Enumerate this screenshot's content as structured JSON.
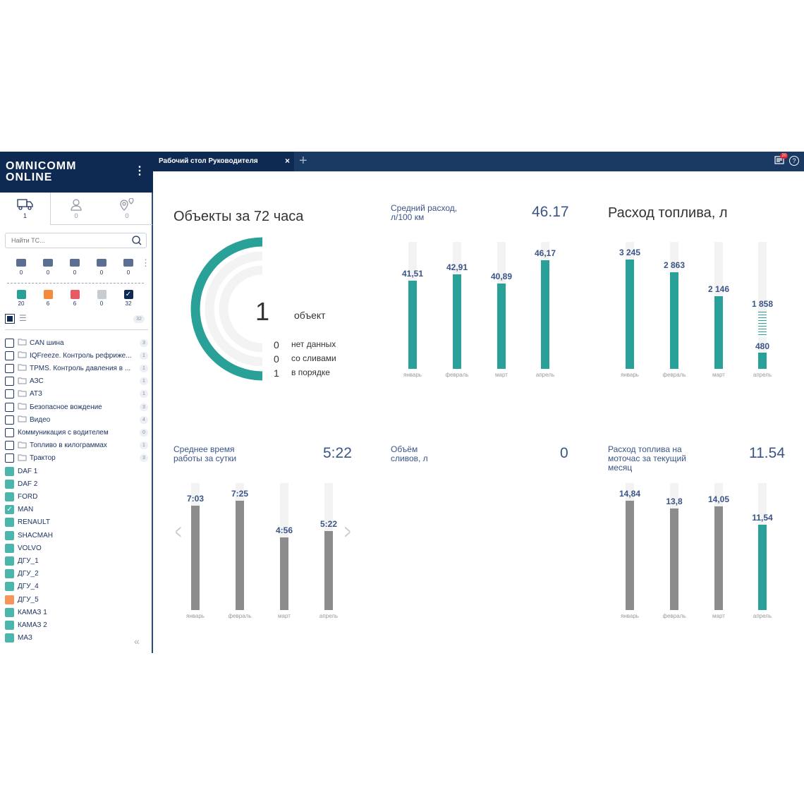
{
  "app": {
    "logo_line1": "OMNICOMM",
    "logo_line2": "ONLINE",
    "menu_icon": "vertical-dots"
  },
  "sidebar": {
    "tabs": [
      {
        "icon": "truck-icon",
        "count": "1"
      },
      {
        "icon": "person-icon",
        "count": "0"
      },
      {
        "icon": "geozone-icon",
        "count": "0"
      }
    ],
    "search_placeholder": "Найти ТС...",
    "filters": [
      {
        "icon": "service-icon",
        "count": "0"
      },
      {
        "icon": "crash-icon",
        "count": "0"
      },
      {
        "icon": "truck-loaded-icon",
        "count": "0"
      },
      {
        "icon": "bed-icon",
        "count": "0"
      },
      {
        "icon": "fuel-station-icon",
        "count": "0"
      }
    ],
    "statuses": [
      {
        "color": "#2aa198",
        "count": "20"
      },
      {
        "color": "#f38a3c",
        "count": "6"
      },
      {
        "color": "#e85a64",
        "count": "6"
      },
      {
        "color": "#c7ccd2",
        "count": "0"
      },
      {
        "color": "#0e2a52",
        "count": "32",
        "checked": true
      }
    ],
    "total": "32",
    "groups": [
      {
        "label": "CAN шина",
        "count": "3"
      },
      {
        "label": "IQFreeze. Контроль рефриже...",
        "count": "1"
      },
      {
        "label": "TPMS. Контроль давления в ...",
        "count": "1"
      },
      {
        "label": "АЗС",
        "count": "1"
      },
      {
        "label": "АТЗ",
        "count": "1"
      },
      {
        "label": "Безопасное вождение",
        "count": "3"
      },
      {
        "label": "Видео",
        "count": "4"
      },
      {
        "label": "Коммуникация с водителем",
        "count": "0",
        "nofolder": true
      },
      {
        "label": "Топливо в килограммах",
        "count": "1"
      },
      {
        "label": "Трактор",
        "count": "3"
      }
    ],
    "vehicles": [
      {
        "label": "DAF 1",
        "color": "#4db6ac"
      },
      {
        "label": "DAF 2",
        "color": "#4db6ac"
      },
      {
        "label": "FORD",
        "color": "#4db6ac"
      },
      {
        "label": "MAN",
        "color": "#4db6ac",
        "checked": true
      },
      {
        "label": "RENAULT",
        "color": "#4db6ac"
      },
      {
        "label": "SHACMAH",
        "color": "#4db6ac"
      },
      {
        "label": "VOLVO",
        "color": "#4db6ac"
      },
      {
        "label": "ДГУ_1",
        "color": "#4db6ac"
      },
      {
        "label": "ДГУ_2",
        "color": "#4db6ac"
      },
      {
        "label": "ДГУ_4",
        "color": "#4db6ac"
      },
      {
        "label": "ДГУ_5",
        "color": "#f5955a"
      },
      {
        "label": "КАМАЗ 1",
        "color": "#4db6ac"
      },
      {
        "label": "КАМАЗ 2",
        "color": "#4db6ac"
      },
      {
        "label": "МАЗ",
        "color": "#4db6ac"
      }
    ]
  },
  "topbar": {
    "tab_label": "Рабочий стол Руководителя",
    "notifications": "20"
  },
  "objects": {
    "title": "Объекты за 72 часа",
    "total": "1",
    "total_label": "объект",
    "ring_color": "#2aa198",
    "rows": [
      {
        "value": "0",
        "label": "нет данных"
      },
      {
        "value": "0",
        "label": "со сливами"
      },
      {
        "value": "1",
        "label": "в порядке"
      }
    ]
  },
  "widgets": {
    "avg": {
      "title": "Средний расход, л/100 км",
      "value": "46.17"
    },
    "fuel": {
      "title": "Расход топлива, л"
    },
    "worktime": {
      "title": "Среднее время работы за сутки",
      "value": "5:22"
    },
    "drains": {
      "title": "Объём сливов, л",
      "value": "0"
    },
    "moto": {
      "title": "Расход топлива на моточас за текущий месяц",
      "value": "11.54"
    }
  },
  "chart_data": [
    {
      "type": "bar",
      "categories": [
        "январь",
        "февраль",
        "март",
        "апрель"
      ],
      "values": [
        41.51,
        42.91,
        40.89,
        46.17
      ],
      "labels": [
        "41,51",
        "42,91",
        "40,89",
        "46,17"
      ],
      "colors": [
        "#2aa198",
        "#2aa198",
        "#2aa198",
        "#2aa198"
      ]
    },
    {
      "type": "bar",
      "categories": [
        "январь",
        "февраль",
        "март",
        "апрель"
      ],
      "values": [
        3245,
        2863,
        2146,
        480
      ],
      "labels": [
        "3 245",
        "2 863",
        "2 146",
        "480"
      ],
      "forecast": {
        "index": 3,
        "value": 1858,
        "label": "1 858"
      },
      "colors": [
        "#2aa198",
        "#2aa198",
        "#2aa198",
        "#2aa198"
      ]
    },
    {
      "type": "bar",
      "categories": [
        "январь",
        "февраль",
        "март",
        "апрель"
      ],
      "values": [
        7.05,
        7.4167,
        4.9333,
        5.3667
      ],
      "labels": [
        "7:03",
        "7:25",
        "4:56",
        "5:22"
      ],
      "colors": [
        "#8c8c8c",
        "#8c8c8c",
        "#8c8c8c",
        "#8c8c8c"
      ]
    },
    {
      "type": "bar",
      "categories": [
        "январь",
        "февраль",
        "март",
        "апрель"
      ],
      "values": [
        14.84,
        13.8,
        14.05,
        11.54
      ],
      "labels": [
        "14,84",
        "13,8",
        "14,05",
        "11,54"
      ],
      "colors": [
        "#8c8c8c",
        "#8c8c8c",
        "#8c8c8c",
        "#2aa198"
      ]
    }
  ]
}
